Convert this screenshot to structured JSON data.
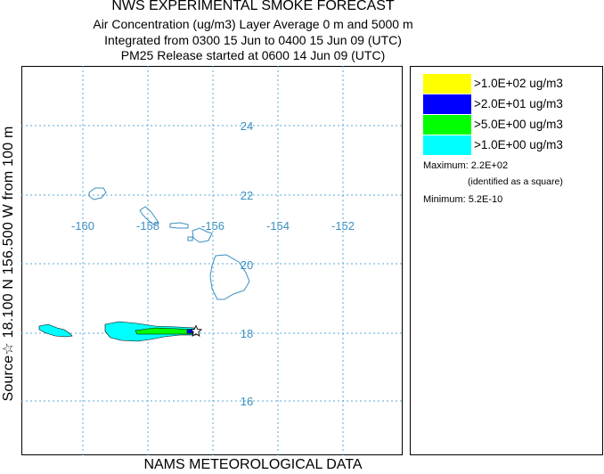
{
  "header": {
    "title": "NWS EXPERIMENTAL SMOKE FORECAST",
    "line2": "Air Concentration (ug/m3) Layer Average    0 m and  5000 m",
    "line3": "Integrated from 0300 15 Jun to 0400 15 Jun 09 (UTC)",
    "line4": "PM25 Release started at 0600 14 Jun 09 (UTC)"
  },
  "side_label": "Source☆ 18.100  N 156.500  W    from  100 m",
  "footer": "NAMS METEOROLOGICAL DATA",
  "map": {
    "lon_labels": [
      "-160",
      "-158",
      "-156",
      "-154",
      "-152"
    ],
    "lat_labels": [
      "24",
      "22",
      "20",
      "18",
      "16"
    ],
    "grid_color": "#5aa9d6",
    "coast_color": "#3a8fc0",
    "source_marker": "star-icon"
  },
  "legend": {
    "items": [
      {
        "label": ">1.0E+02 ug/m3",
        "color": "#ffff00"
      },
      {
        "label": ">2.0E+01 ug/m3",
        "color": "#0000ff"
      },
      {
        "label": ">5.0E+00 ug/m3",
        "color": "#00ff00"
      },
      {
        "label": ">1.0E+00 ug/m3",
        "color": "#00ffff"
      }
    ],
    "maximum_label": "Maximum: 2.2E+02",
    "identified_label": "(identified as a square)",
    "minimum_label": "Minimum: 5.2E-10"
  }
}
